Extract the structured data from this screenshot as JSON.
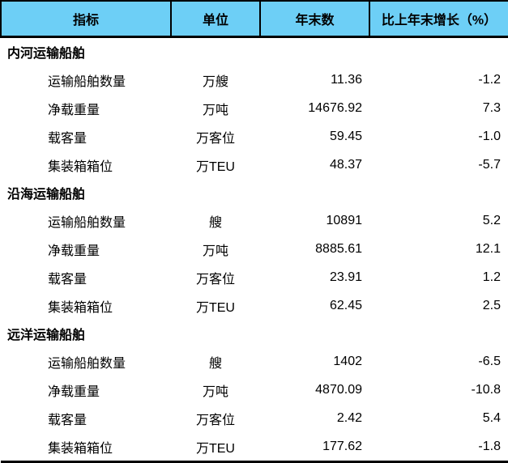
{
  "header": {
    "col1": "指标",
    "col2": "单位",
    "col3": "年末数",
    "col4": "比上年末增长（%）"
  },
  "sections": [
    {
      "title": "内河运输船舶",
      "rows": [
        {
          "label": "运输船舶数量",
          "unit": "万艘",
          "value": "11.36",
          "change": "-1.2"
        },
        {
          "label": "净载重量",
          "unit": "万吨",
          "value": "14676.92",
          "change": "7.3"
        },
        {
          "label": "载客量",
          "unit": "万客位",
          "value": "59.45",
          "change": "-1.0"
        },
        {
          "label": "集装箱箱位",
          "unit": "万TEU",
          "value": "48.37",
          "change": "-5.7"
        }
      ]
    },
    {
      "title": "沿海运输船舶",
      "rows": [
        {
          "label": "运输船舶数量",
          "unit": "艘",
          "value": "10891",
          "change": "5.2"
        },
        {
          "label": "净载重量",
          "unit": "万吨",
          "value": "8885.61",
          "change": "12.1"
        },
        {
          "label": "载客量",
          "unit": "万客位",
          "value": "23.91",
          "change": "1.2"
        },
        {
          "label": "集装箱箱位",
          "unit": "万TEU",
          "value": "62.45",
          "change": "2.5"
        }
      ]
    },
    {
      "title": "远洋运输船舶",
      "rows": [
        {
          "label": "运输船舶数量",
          "unit": "艘",
          "value": "1402",
          "change": "-6.5"
        },
        {
          "label": "净载重量",
          "unit": "万吨",
          "value": "4870.09",
          "change": "-10.8"
        },
        {
          "label": "载客量",
          "unit": "万客位",
          "value": "2.42",
          "change": "5.4"
        },
        {
          "label": "集装箱箱位",
          "unit": "万TEU",
          "value": "177.62",
          "change": "-1.8"
        }
      ]
    }
  ]
}
